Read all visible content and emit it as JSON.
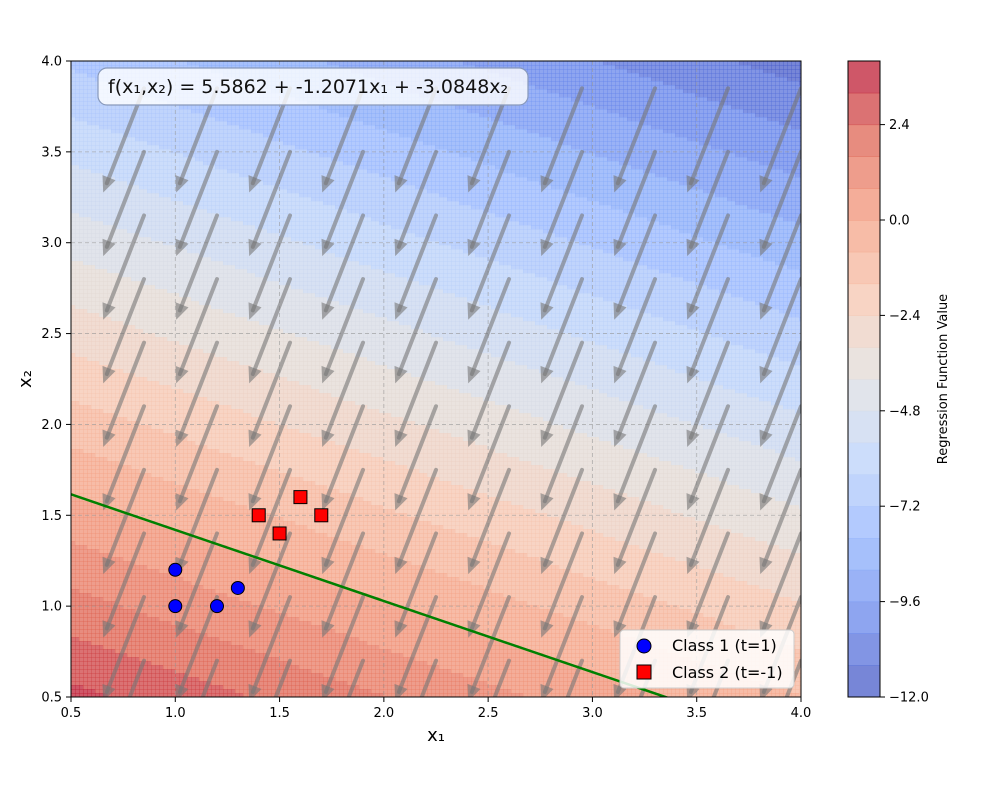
{
  "chart_data": {
    "type": "scatter",
    "title": "",
    "xlabel": "x₁",
    "ylabel": "x₂",
    "xlim": [
      0.5,
      4.0
    ],
    "ylim": [
      0.5,
      4.0
    ],
    "xticks": [
      "0.5",
      "1.0",
      "1.5",
      "2.0",
      "2.5",
      "3.0",
      "3.5",
      "4.0"
    ],
    "yticks": [
      "0.5",
      "1.0",
      "1.5",
      "2.0",
      "2.5",
      "3.0",
      "3.5",
      "4.0"
    ],
    "grid": true,
    "annotation": "f(x₁,x₂) = 5.5862 + -1.2071x₁ + -3.0848x₂",
    "regression": {
      "intercept": 5.5862,
      "w1": -1.2071,
      "w2": -3.0848
    },
    "decision_boundary_color": "#008000",
    "series": [
      {
        "name": "Class 1 (t=1)",
        "marker": "circle",
        "color": "#0000ff",
        "points": [
          [
            1.0,
            1.0
          ],
          [
            1.0,
            1.2
          ],
          [
            1.2,
            1.0
          ],
          [
            1.3,
            1.1
          ]
        ]
      },
      {
        "name": "Class 2 (t=-1)",
        "marker": "square",
        "color": "#ff0000",
        "points": [
          [
            1.4,
            1.5
          ],
          [
            1.5,
            1.4
          ],
          [
            1.6,
            1.6
          ],
          [
            1.7,
            1.5
          ]
        ]
      }
    ],
    "legend_position": "bottom-right",
    "colorbar": {
      "label": "Regression Function Value",
      "ticks": [
        "2.4",
        "0.0",
        "−2.4",
        "−4.8",
        "−7.2",
        "−9.6",
        "−12.0"
      ],
      "range": [
        -12.0,
        4.0
      ],
      "colormap": "coolwarm"
    }
  }
}
